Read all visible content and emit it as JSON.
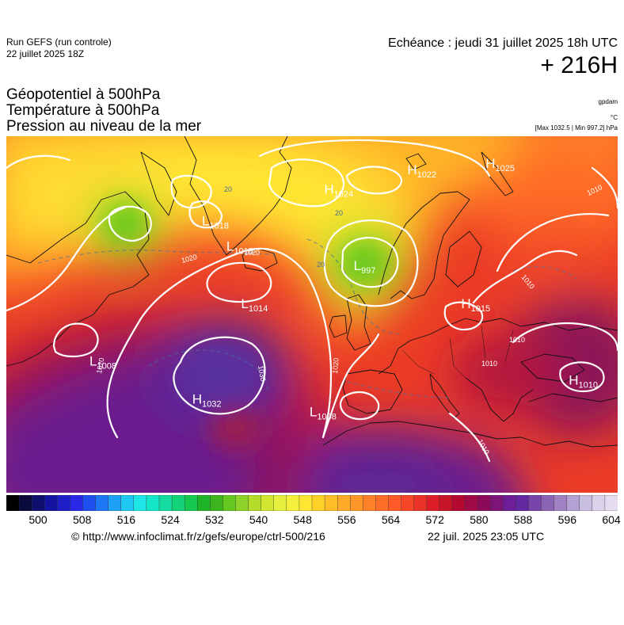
{
  "header": {
    "run_name": "Run GEFS (run controle)",
    "run_date": "22 juillet 2025 18Z",
    "echeance": "Echéance : jeudi 31 juillet 2025 18h UTC",
    "horizon": "+ 216H"
  },
  "parameters": [
    "Géopotentiel à 500hPa",
    "Température à 500hPa",
    "Pression au niveau de la mer"
  ],
  "units": {
    "geopotential": "gpdam",
    "temperature": "°C",
    "extremes": "[Max 1032.5 | Min 997.2] hPa"
  },
  "pressure_centers": [
    {
      "type": "H",
      "value": "1032",
      "lon": -32,
      "lat": 40
    },
    {
      "type": "L",
      "value": "1008",
      "lon": -53,
      "lat": 46
    },
    {
      "type": "L",
      "value": "1014",
      "lon": -22,
      "lat": 55
    },
    {
      "type": "L",
      "value": "997",
      "lon": 1,
      "lat": 61
    },
    {
      "type": "H",
      "value": "1024",
      "lon": -5,
      "lat": 73
    },
    {
      "type": "H",
      "value": "1022",
      "lon": 12,
      "lat": 76
    },
    {
      "type": "H",
      "value": "1025",
      "lon": 28,
      "lat": 77
    },
    {
      "type": "H",
      "value": "1015",
      "lon": 23,
      "lat": 55
    },
    {
      "type": "L",
      "value": "1008",
      "lon": -8,
      "lat": 38
    },
    {
      "type": "H",
      "value": "1010",
      "lon": 45,
      "lat": 43
    },
    {
      "type": "L",
      "value": "1018",
      "lon": -30,
      "lat": 68
    },
    {
      "type": "L",
      "value": "1018",
      "lon": -25,
      "lat": 64
    }
  ],
  "contour_labels": [
    "1020",
    "1020",
    "1020",
    "1020",
    "1030",
    "1010",
    "1010",
    "1010",
    "1010",
    "1010",
    "20",
    "20",
    "20"
  ],
  "colorbar": {
    "min": 500,
    "max": 604,
    "step": 2,
    "tick_labels": [
      "500",
      "508",
      "516",
      "524",
      "532",
      "540",
      "548",
      "556",
      "564",
      "572",
      "580",
      "588",
      "596",
      "604"
    ],
    "colors": [
      "#000000",
      "#0a0a3c",
      "#0f0f6e",
      "#1414a0",
      "#1e1ec8",
      "#2828e6",
      "#1e50f0",
      "#1e78f5",
      "#1ea0f5",
      "#1ec8f0",
      "#1ee6e6",
      "#14e6c8",
      "#14dca0",
      "#14d278",
      "#14c850",
      "#1eb428",
      "#3cb41e",
      "#64c81e",
      "#8cd228",
      "#b4dc28",
      "#d2e632",
      "#e6f03c",
      "#f5f03c",
      "#ffe632",
      "#ffd228",
      "#ffbe28",
      "#ffaa28",
      "#ff9628",
      "#ff8228",
      "#ff6e28",
      "#ff5a28",
      "#f54628",
      "#eb3228",
      "#dc1e28",
      "#c81428",
      "#b40a32",
      "#a00a46",
      "#8c0a5a",
      "#7d1478",
      "#6e1e96",
      "#6428a0",
      "#7846aa",
      "#8c64b4",
      "#a082c3",
      "#b4a0d2",
      "#c8bee1",
      "#dcd2eb",
      "#e6dcf0"
    ]
  },
  "footer": {
    "credit": "© http://www.infoclimat.fr/z/gefs/europe/ctrl-500/216",
    "issued": "22 juil. 2025 23:05 UTC"
  }
}
